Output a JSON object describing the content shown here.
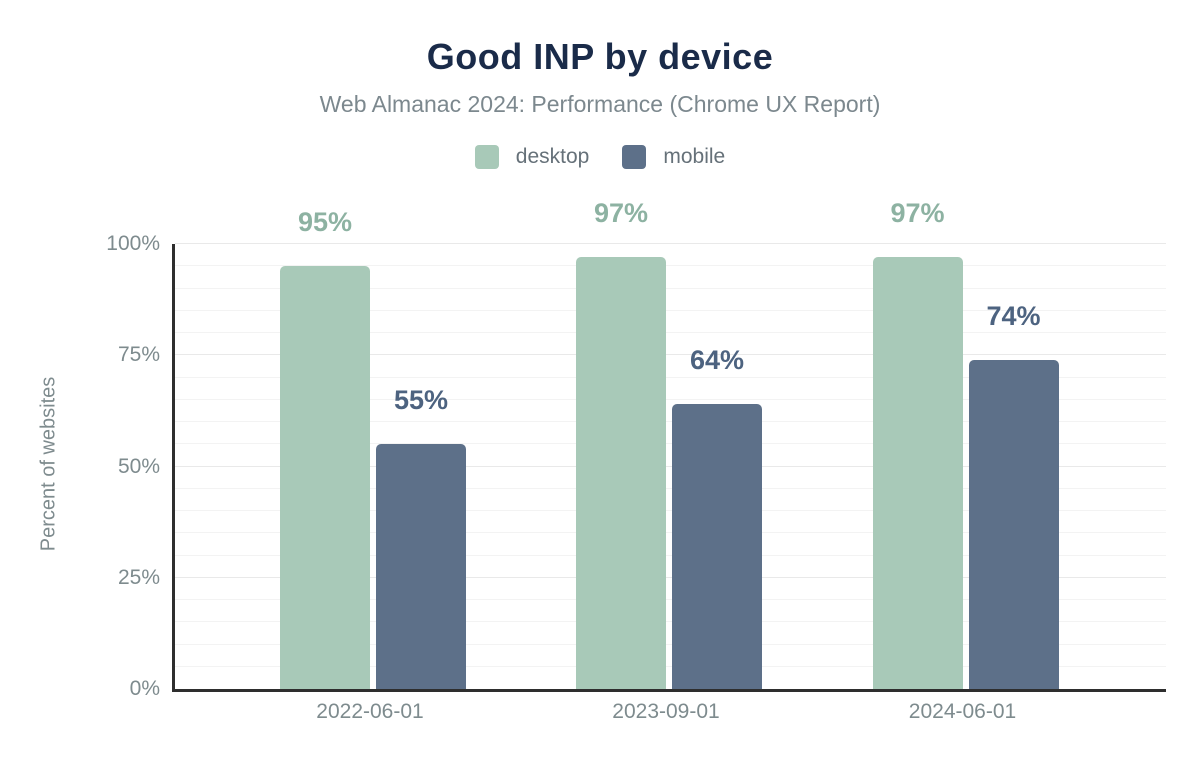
{
  "chart_data": {
    "type": "bar",
    "title": "Good INP by device",
    "subtitle": "Web Almanac 2024: Performance (Chrome UX Report)",
    "ylabel": "Percent of websites",
    "xlabel": "",
    "categories": [
      "2022-06-01",
      "2023-09-01",
      "2024-06-01"
    ],
    "series": [
      {
        "name": "desktop",
        "values": [
          95,
          97,
          97
        ],
        "color": "#a8c9b8",
        "label_color": "#8db2a2"
      },
      {
        "name": "mobile",
        "values": [
          55,
          64,
          74
        ],
        "color": "#5d7089",
        "label_color": "#4d6380"
      }
    ],
    "value_labels": {
      "desktop": [
        "95%",
        "97%",
        "97%"
      ],
      "mobile": [
        "55%",
        "64%",
        "74%"
      ]
    },
    "value_suffix": "%",
    "ylim": [
      0,
      100
    ],
    "yticks": [
      {
        "label": "0%",
        "value": 0
      },
      {
        "label": "25%",
        "value": 25
      },
      {
        "label": "50%",
        "value": 50
      },
      {
        "label": "75%",
        "value": 75
      },
      {
        "label": "100%",
        "value": 100
      }
    ],
    "grid": "horizontal",
    "grid_step": 5,
    "legend_position": "top"
  },
  "colors": {
    "title": "#1a2b49",
    "subtitle": "#7c888e",
    "legend_text": "#667179",
    "axis_text": "#7e8b8e",
    "axis_line": "#2e2e2e",
    "gridline_minor": "#f3f3f3",
    "gridline_major": "#e9e9e9",
    "background": "#ffffff"
  }
}
